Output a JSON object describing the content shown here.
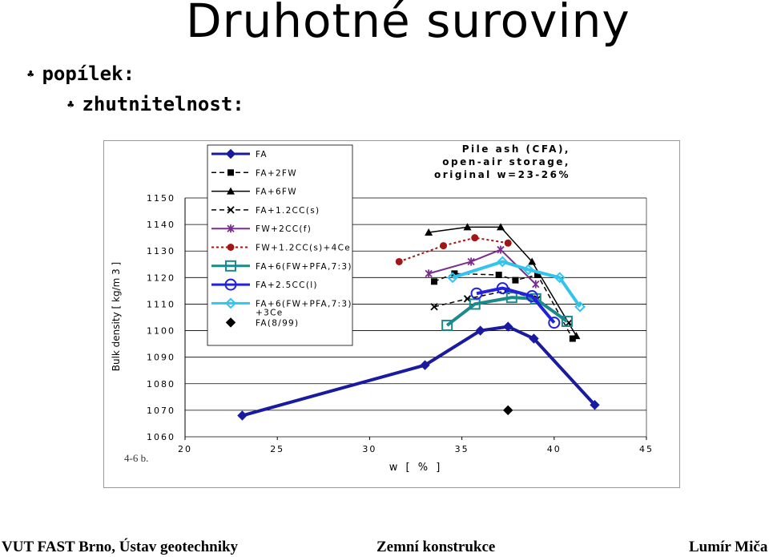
{
  "slide": {
    "title": "Druhotné suroviny",
    "bullet1": "popílek:",
    "bullet2": "zhutnitelnost:",
    "footer_left": "VUT FAST Brno, Ústav geotechniky",
    "footer_center": "Zemní konstrukce",
    "footer_right": "Lumír Miča"
  },
  "chart_data": {
    "type": "line",
    "title": "Pile ash (CFA),\nopen-air storage,\noriginal w=23-26%",
    "xlabel": "w [ % ]",
    "ylabel": "Bulk density [ kg/m 3 ]",
    "xlim": [
      20,
      45
    ],
    "ylim": [
      1060,
      1150
    ],
    "xticks": [
      "20",
      "25",
      "30",
      "35",
      "40",
      "45"
    ],
    "yticks": [
      "1060",
      "1070",
      "1080",
      "1090",
      "1100",
      "1110",
      "1120",
      "1130",
      "1140",
      "1150"
    ],
    "corner_note": "4-6 b.",
    "grid": "horizontal",
    "legend_position": "top-left",
    "series": [
      {
        "name": "FA",
        "color": "#1a1aa0",
        "marker": "diamond",
        "dash": "solid",
        "width": 4,
        "points": [
          [
            23.1,
            1068
          ],
          [
            33.0,
            1087
          ],
          [
            36.0,
            1100
          ],
          [
            37.5,
            1101.5
          ],
          [
            38.9,
            1097
          ],
          [
            42.2,
            1072
          ]
        ]
      },
      {
        "name": "FA+2FW",
        "color": "#000000",
        "marker": "square",
        "dash": "dashed",
        "width": 1.5,
        "points": [
          [
            33.5,
            1118.5
          ],
          [
            34.6,
            1121.5
          ],
          [
            37.0,
            1121
          ],
          [
            37.9,
            1119
          ],
          [
            39.1,
            1121
          ],
          [
            41.0,
            1097
          ]
        ]
      },
      {
        "name": "FA+6FW",
        "color": "#000000",
        "marker": "triangle",
        "dash": "solid",
        "width": 1.5,
        "points": [
          [
            33.2,
            1137
          ],
          [
            35.3,
            1139
          ],
          [
            37.1,
            1139
          ],
          [
            38.8,
            1126
          ],
          [
            41.2,
            1098
          ]
        ]
      },
      {
        "name": "FA+1.2CC(s)",
        "color": "#000000",
        "marker": "x",
        "dash": "dashed",
        "width": 1.5,
        "points": [
          [
            33.5,
            1109
          ],
          [
            35.3,
            1112
          ],
          [
            37.4,
            1115
          ],
          [
            39.1,
            1112
          ],
          [
            40.8,
            1103
          ]
        ]
      },
      {
        "name": "FW+2CC(f)",
        "color": "#7b2d8e",
        "marker": "star",
        "dash": "solid",
        "width": 2,
        "points": [
          [
            33.2,
            1121.5
          ],
          [
            35.5,
            1126
          ],
          [
            37.1,
            1130.5
          ],
          [
            39.0,
            1117.5
          ]
        ]
      },
      {
        "name": "FW+1.2CC(s)+4Ce",
        "color": "#a31515",
        "marker": "circle",
        "dash": "dotted",
        "width": 2,
        "points": [
          [
            31.6,
            1126
          ],
          [
            34.0,
            1132
          ],
          [
            35.7,
            1135
          ],
          [
            37.5,
            1133
          ]
        ]
      },
      {
        "name": "FA+6(FW+PFA,7:3)",
        "color": "#1a8a8a",
        "marker": "square-open",
        "dash": "solid",
        "width": 4,
        "points": [
          [
            34.2,
            1102
          ],
          [
            35.7,
            1110
          ],
          [
            37.7,
            1112.5
          ],
          [
            39.0,
            1112
          ],
          [
            40.7,
            1103.5
          ]
        ]
      },
      {
        "name": "FA+2.5CC(l)",
        "color": "#2222dd",
        "marker": "circle-open",
        "dash": "solid",
        "width": 4,
        "points": [
          [
            35.8,
            1114
          ],
          [
            37.2,
            1116
          ],
          [
            38.8,
            1113
          ],
          [
            40.0,
            1103
          ]
        ]
      },
      {
        "name": "FA+6(FW+PFA,7:3)\n+3Ce",
        "color": "#33c4ee",
        "marker": "diamond-open",
        "dash": "solid",
        "width": 4,
        "points": [
          [
            34.5,
            1120
          ],
          [
            37.2,
            1126
          ],
          [
            38.6,
            1123
          ],
          [
            40.3,
            1120
          ],
          [
            41.4,
            1109
          ]
        ]
      },
      {
        "name": "FA(8/99)",
        "color": "#000000",
        "marker": "diamond",
        "dash": "none",
        "width": 0,
        "points": [
          [
            37.5,
            1070
          ]
        ]
      }
    ]
  }
}
